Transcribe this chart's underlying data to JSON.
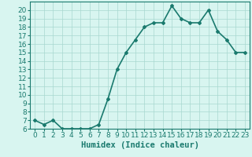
{
  "x": [
    0,
    1,
    2,
    3,
    4,
    5,
    6,
    7,
    8,
    9,
    10,
    11,
    12,
    13,
    14,
    15,
    16,
    17,
    18,
    19,
    20,
    21,
    22,
    23
  ],
  "y": [
    7.0,
    6.5,
    7.0,
    6.0,
    6.0,
    6.0,
    6.0,
    6.5,
    9.5,
    13.0,
    15.0,
    16.5,
    18.0,
    18.5,
    18.5,
    20.5,
    19.0,
    18.5,
    18.5,
    20.0,
    17.5,
    16.5,
    15.0,
    15.0
  ],
  "line_color": "#1a7a6e",
  "marker": "D",
  "marker_size": 2,
  "bg_color": "#d8f5f0",
  "grid_color": "#a8d8d0",
  "xlabel": "Humidex (Indice chaleur)",
  "xlim": [
    -0.5,
    23.5
  ],
  "ylim": [
    6,
    21
  ],
  "yticks": [
    6,
    7,
    8,
    9,
    10,
    11,
    12,
    13,
    14,
    15,
    16,
    17,
    18,
    19,
    20
  ],
  "xtick_labels": [
    "0",
    "1",
    "2",
    "3",
    "4",
    "5",
    "6",
    "7",
    "8",
    "9",
    "10",
    "11",
    "12",
    "13",
    "14",
    "15",
    "16",
    "17",
    "18",
    "19",
    "20",
    "21",
    "22",
    "23"
  ],
  "tick_color": "#1a7a6e",
  "label_color": "#1a7a6e",
  "font_size": 6.5,
  "xlabel_fontsize": 7.5,
  "linewidth": 1.2
}
